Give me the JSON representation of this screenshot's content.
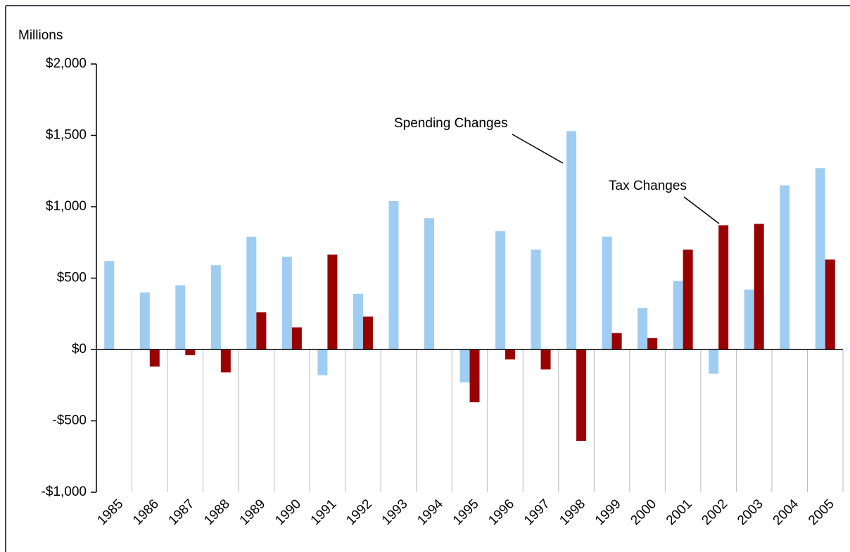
{
  "chart_data": {
    "type": "bar",
    "y_label": "Millions",
    "categories": [
      "1985",
      "1986",
      "1987",
      "1988",
      "1989",
      "1990",
      "1991",
      "1992",
      "1993",
      "1994",
      "1995",
      "1996",
      "1997",
      "1998",
      "1999",
      "2000",
      "2001",
      "2002",
      "2003",
      "2004",
      "2005"
    ],
    "series": [
      {
        "name": "Spending Changes",
        "color": "#9fcdf2",
        "values": [
          620,
          400,
          450,
          590,
          790,
          650,
          -180,
          390,
          1040,
          920,
          -230,
          830,
          700,
          1530,
          790,
          290,
          480,
          -170,
          420,
          1150,
          1270
        ]
      },
      {
        "name": "Tax Changes",
        "color": "#990000",
        "values": [
          null,
          -120,
          -40,
          -160,
          260,
          155,
          665,
          230,
          null,
          null,
          -370,
          -70,
          -140,
          -640,
          115,
          80,
          700,
          870,
          880,
          null,
          630
        ]
      }
    ],
    "ylim": [
      -1000,
      2000
    ],
    "yticks": [
      {
        "value": -1000,
        "label": "-$1,000"
      },
      {
        "value": -500,
        "label": "-$500"
      },
      {
        "value": 0,
        "label": "$0"
      },
      {
        "value": 500,
        "label": "$500"
      },
      {
        "value": 1000,
        "label": "$1,000"
      },
      {
        "value": 1500,
        "label": "$1,500"
      },
      {
        "value": 2000,
        "label": "$2,000"
      }
    ]
  }
}
